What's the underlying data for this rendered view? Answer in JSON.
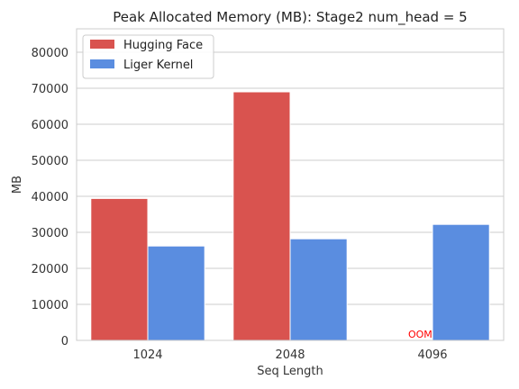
{
  "chart_data": {
    "type": "bar",
    "title": "Peak Allocated Memory (MB): Stage2 num_head = 5",
    "xlabel": "Seq Length",
    "ylabel": "MB",
    "categories": [
      "1024",
      "2048",
      "4096"
    ],
    "ylim": [
      0,
      86500
    ],
    "yticks": [
      0,
      10000,
      20000,
      30000,
      40000,
      50000,
      60000,
      70000,
      80000
    ],
    "series": [
      {
        "name": "Hugging Face",
        "color": "#d9534f",
        "values": [
          39400,
          69000,
          null
        ]
      },
      {
        "name": "Liger Kernel",
        "color": "#5a8de0",
        "values": [
          26200,
          28200,
          32200
        ]
      }
    ],
    "annotations": [
      {
        "text": "OOM",
        "category": "4096",
        "series": "Hugging Face",
        "color": "#ff0000"
      }
    ],
    "grid": "horizontal",
    "legend": "top-left"
  }
}
